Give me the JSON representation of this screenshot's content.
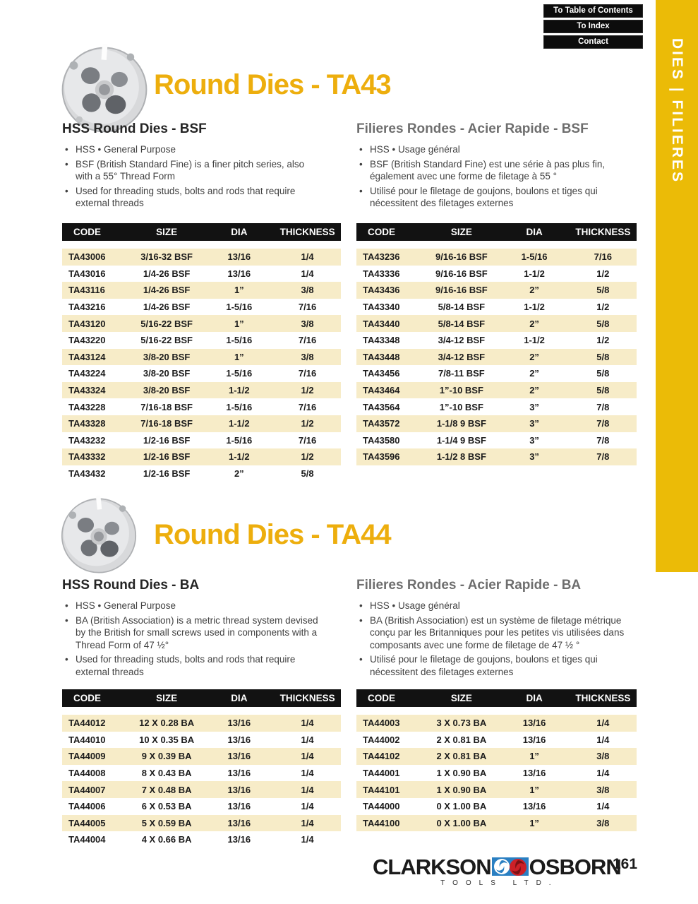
{
  "nav": {
    "buttons": [
      "To Table of Contents",
      "To Index",
      "Contact"
    ]
  },
  "sidebar_tab": {
    "label": "DIES  |  FILIERES"
  },
  "table_headers": [
    "CODE",
    "SIZE",
    "DIA",
    "THICKNESS"
  ],
  "sections": [
    {
      "title": "Round Dies - TA43",
      "english": {
        "heading": "HSS Round Dies - BSF",
        "bullets": [
          "HSS  •  General Purpose",
          "BSF (British Standard Fine) is a finer pitch series, also with a 55° Thread Form",
          "Used for threading studs, bolts and rods that require external threads"
        ]
      },
      "french": {
        "heading": "Filieres Rondes - Acier Rapide - BSF",
        "bullets": [
          "HSS  •  Usage général",
          "BSF (British Standard Fine) est une série à pas plus fin, également avec une forme de filetage à 55 °",
          "Utilisé pour le filetage de goujons, boulons et tiges qui nécessitent des filetages externes"
        ]
      },
      "tables": [
        {
          "rows": [
            [
              "TA43006",
              "3/16-32 BSF",
              "13/16",
              "1/4"
            ],
            [
              "TA43016",
              "1/4-26 BSF",
              "13/16",
              "1/4"
            ],
            [
              "TA43116",
              "1/4-26 BSF",
              "1”",
              "3/8"
            ],
            [
              "TA43216",
              "1/4-26 BSF",
              "1-5/16",
              "7/16"
            ],
            [
              "TA43120",
              "5/16-22 BSF",
              "1”",
              "3/8"
            ],
            [
              "TA43220",
              "5/16-22 BSF",
              "1-5/16",
              "7/16"
            ],
            [
              "TA43124",
              "3/8-20 BSF",
              "1”",
              "3/8"
            ],
            [
              "TA43224",
              "3/8-20 BSF",
              "1-5/16",
              "7/16"
            ],
            [
              "TA43324",
              "3/8-20 BSF",
              "1-1/2",
              "1/2"
            ],
            [
              "TA43228",
              "7/16-18 BSF",
              "1-5/16",
              "7/16"
            ],
            [
              "TA43328",
              "7/16-18 BSF",
              "1-1/2",
              "1/2"
            ],
            [
              "TA43232",
              "1/2-16 BSF",
              "1-5/16",
              "7/16"
            ],
            [
              "TA43332",
              "1/2-16 BSF",
              "1-1/2",
              "1/2"
            ],
            [
              "TA43432",
              "1/2-16 BSF",
              "2”",
              "5/8"
            ]
          ]
        },
        {
          "rows": [
            [
              "TA43236",
              "9/16-16 BSF",
              "1-5/16",
              "7/16"
            ],
            [
              "TA43336",
              "9/16-16 BSF",
              "1-1/2",
              "1/2"
            ],
            [
              "TA43436",
              "9/16-16 BSF",
              "2”",
              "5/8"
            ],
            [
              "TA43340",
              "5/8-14 BSF",
              "1-1/2",
              "1/2"
            ],
            [
              "TA43440",
              "5/8-14 BSF",
              "2”",
              "5/8"
            ],
            [
              "TA43348",
              "3/4-12 BSF",
              "1-1/2",
              "1/2"
            ],
            [
              "TA43448",
              "3/4-12 BSF",
              "2”",
              "5/8"
            ],
            [
              "TA43456",
              "7/8-11 BSF",
              "2”",
              "5/8"
            ],
            [
              "TA43464",
              "1”-10 BSF",
              "2”",
              "5/8"
            ],
            [
              "TA43564",
              "1”-10 BSF",
              "3”",
              "7/8"
            ],
            [
              "TA43572",
              "1-1/8 9 BSF",
              "3”",
              "7/8"
            ],
            [
              "TA43580",
              "1-1/4 9 BSF",
              "3”",
              "7/8"
            ],
            [
              "TA43596",
              "1-1/2 8 BSF",
              "3”",
              "7/8"
            ]
          ]
        }
      ]
    },
    {
      "title": "Round Dies - TA44",
      "english": {
        "heading": "HSS Round Dies - BA",
        "bullets": [
          "HSS  •  General Purpose",
          "BA (British Association) is a metric thread system devised by the British for small screws used in components with a Thread Form of 47 ½°",
          "Used for threading studs, bolts and rods that require external threads"
        ]
      },
      "french": {
        "heading": "Filieres Rondes - Acier Rapide - BA",
        "bullets": [
          "HSS  •  Usage général",
          "BA (British Association) est un système de filetage métrique conçu par les Britanniques pour les petites vis utilisées dans composants avec une forme de filetage de 47 ½ °",
          "Utilisé pour le filetage de goujons, boulons et tiges qui nécessitent des filetages externes"
        ]
      },
      "tables": [
        {
          "rows": [
            [
              "TA44012",
              "12 X 0.28 BA",
              "13/16",
              "1/4"
            ],
            [
              "TA44010",
              "10 X 0.35 BA",
              "13/16",
              "1/4"
            ],
            [
              "TA44009",
              "9 X 0.39 BA",
              "13/16",
              "1/4"
            ],
            [
              "TA44008",
              "8 X 0.43 BA",
              "13/16",
              "1/4"
            ],
            [
              "TA44007",
              "7 X 0.48 BA",
              "13/16",
              "1/4"
            ],
            [
              "TA44006",
              "6 X 0.53 BA",
              "13/16",
              "1/4"
            ],
            [
              "TA44005",
              "5 X 0.59 BA",
              "13/16",
              "1/4"
            ],
            [
              "TA44004",
              "4 X 0.66 BA",
              "13/16",
              "1/4"
            ]
          ]
        },
        {
          "rows": [
            [
              "TA44003",
              "3 X 0.73 BA",
              "13/16",
              "1/4"
            ],
            [
              "TA44002",
              "2 X 0.81 BA",
              "13/16",
              "1/4"
            ],
            [
              "TA44102",
              "2 X 0.81 BA",
              "1”",
              "3/8"
            ],
            [
              "TA44001",
              "1 X 0.90 BA",
              "13/16",
              "1/4"
            ],
            [
              "TA44101",
              "1 X 0.90 BA",
              "1”",
              "3/8"
            ],
            [
              "TA44000",
              "0 X 1.00 BA",
              "13/16",
              "1/4"
            ],
            [
              "TA44100",
              "0 X 1.00 BA",
              "1”",
              "3/8"
            ]
          ]
        }
      ]
    }
  ],
  "footer": {
    "brand_left": "CLARKSON",
    "brand_right": "OSBORN",
    "tagline": "TOOLS LTD.",
    "page_number": "161"
  },
  "colors": {
    "accent_gold": "#EDAE0D",
    "sidebar_gold": "#EBBB07",
    "table_header_bg": "#121212",
    "row_stripe_cream": "#F7ECC8",
    "heading_gray": "#6e6e6e",
    "brand_blue": "#2a7fc2",
    "brand_red": "#cc2027"
  }
}
